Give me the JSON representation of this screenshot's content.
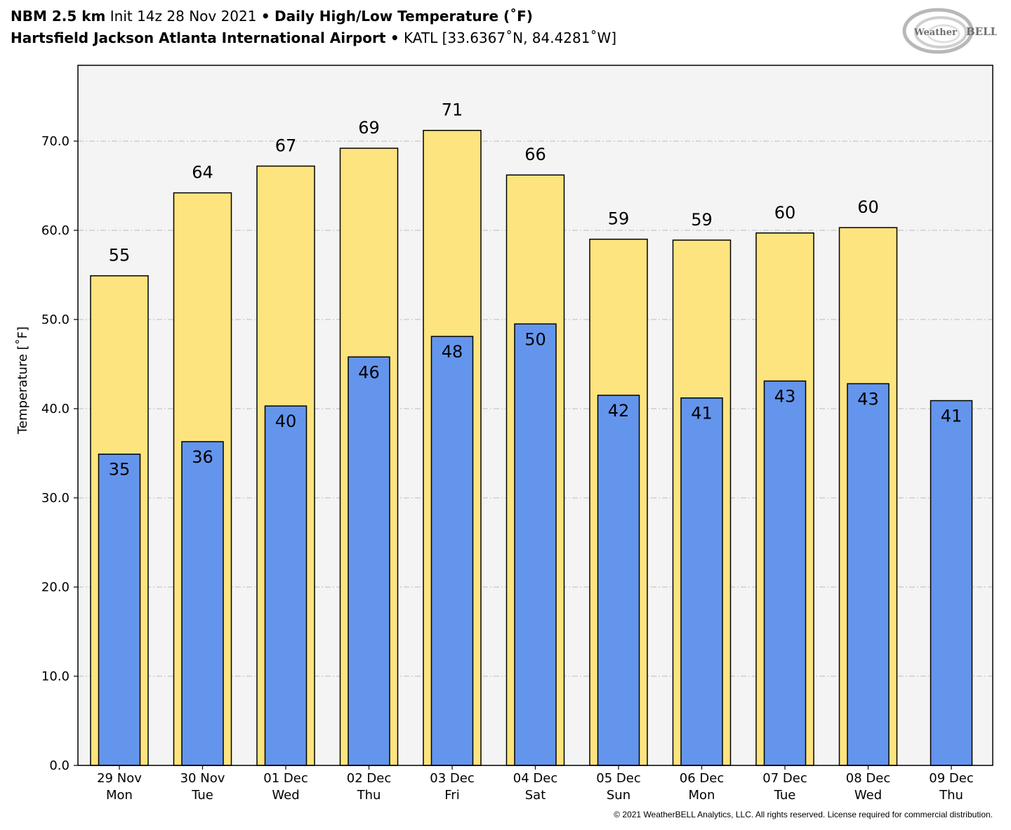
{
  "header": {
    "model": "NBM 2.5 km",
    "init": "Init 14z 28 Nov 2021",
    "bullet": "•",
    "product": "Daily High/Low Temperature (˚F)",
    "station_name": "Hartsfield Jackson Atlanta International Airport",
    "station_id": "KATL [33.6367˚N, 84.4281˚W]"
  },
  "logo": {
    "text_left": "Weather",
    "text_right": "BELL",
    "icon": "weatherbell-swirl-logo"
  },
  "copyright": "© 2021 WeatherBELL Analytics, LLC. All rights reserved. License required for commercial distribution.",
  "colors": {
    "high_bar": "#fde47f",
    "low_bar": "#6495ed",
    "plot_bg": "#f4f4f4",
    "grid": "#bbbbbb"
  },
  "chart_data": {
    "type": "bar",
    "title": "Daily High/Low Temperature (˚F)",
    "ylabel": "Temperature [˚F]",
    "xlabel": "",
    "ylim": [
      0,
      78.5
    ],
    "yticks": [
      "0.0",
      "10.0",
      "20.0",
      "30.0",
      "40.0",
      "50.0",
      "60.0",
      "70.0"
    ],
    "grid": true,
    "categories": [
      [
        "29 Nov",
        "Mon"
      ],
      [
        "30 Nov",
        "Tue"
      ],
      [
        "01 Dec",
        "Wed"
      ],
      [
        "02 Dec",
        "Thu"
      ],
      [
        "03 Dec",
        "Fri"
      ],
      [
        "04 Dec",
        "Sat"
      ],
      [
        "05 Dec",
        "Sun"
      ],
      [
        "06 Dec",
        "Mon"
      ],
      [
        "07 Dec",
        "Tue"
      ],
      [
        "08 Dec",
        "Wed"
      ],
      [
        "09 Dec",
        "Thu"
      ]
    ],
    "series": [
      {
        "key": "high",
        "values": [
          54.9,
          64.2,
          67.2,
          69.2,
          71.2,
          66.2,
          59.0,
          58.9,
          59.7,
          60.3,
          null
        ],
        "labels": [
          "55",
          "64",
          "67",
          "69",
          "71",
          "66",
          "59",
          "59",
          "60",
          "60",
          ""
        ]
      },
      {
        "key": "low",
        "values": [
          34.9,
          36.3,
          40.3,
          45.8,
          48.1,
          49.5,
          41.5,
          41.2,
          43.1,
          42.8,
          40.9
        ],
        "labels": [
          "35",
          "36",
          "40",
          "46",
          "48",
          "50",
          "42",
          "41",
          "43",
          "43",
          "41"
        ]
      }
    ]
  }
}
